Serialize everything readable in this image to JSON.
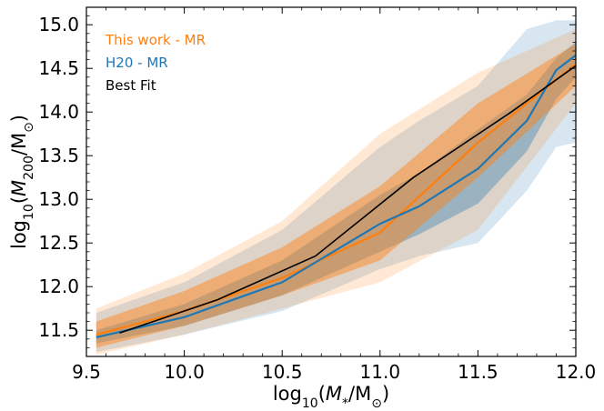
{
  "chart_data": {
    "type": "line",
    "title": "",
    "xlabel": "log10(M*/M⊙)",
    "ylabel": "log10(M200/M⊙)",
    "xlim": [
      9.5,
      12.0
    ],
    "ylim": [
      11.2,
      15.2
    ],
    "xticks": [
      9.5,
      10.0,
      10.5,
      11.0,
      11.5,
      12.0
    ],
    "xtick_labels": [
      "9.5",
      "10.0",
      "10.5",
      "11.0",
      "11.5",
      "12.0"
    ],
    "yticks": [
      11.5,
      12.0,
      12.5,
      13.0,
      13.5,
      14.0,
      14.5,
      15.0
    ],
    "ytick_labels": [
      "11.5",
      "12.0",
      "12.5",
      "13.0",
      "13.5",
      "14.0",
      "14.5",
      "15.0"
    ],
    "grid": false,
    "legend_position": "top-left",
    "series": [
      {
        "name": "This work - MR",
        "color": "#ff7f0e",
        "x": [
          9.55,
          10.0,
          10.5,
          11.0,
          11.5,
          12.0
        ],
        "median": [
          11.45,
          11.72,
          12.1,
          12.62,
          13.65,
          14.55
        ],
        "inner_band": {
          "lower": [
            11.3,
            11.55,
            11.9,
            12.3,
            13.25,
            14.3
          ],
          "upper": [
            11.6,
            11.95,
            12.45,
            13.15,
            14.1,
            14.78
          ]
        },
        "outer_band": {
          "lower": [
            11.22,
            11.45,
            11.75,
            12.05,
            12.65,
            14.1
          ],
          "upper": [
            11.75,
            12.15,
            12.75,
            13.75,
            14.45,
            14.95
          ]
        }
      },
      {
        "name": "H20 - MR",
        "color": "#1f77b4",
        "x": [
          9.55,
          10.0,
          10.5,
          11.0,
          11.2,
          11.5,
          11.75,
          11.9,
          12.0
        ],
        "median": [
          11.42,
          11.65,
          12.05,
          12.72,
          12.92,
          13.35,
          13.9,
          14.48,
          14.65
        ],
        "inner_band": {
          "lower": [
            11.35,
            11.55,
            11.9,
            12.4,
            12.6,
            12.95,
            13.55,
            14.15,
            14.4
          ],
          "upper": [
            11.5,
            11.8,
            12.3,
            13.05,
            13.3,
            13.8,
            14.2,
            14.62,
            14.8
          ]
        },
        "outer_band": {
          "lower": [
            11.25,
            11.45,
            11.72,
            12.2,
            12.35,
            12.5,
            13.1,
            13.6,
            13.65
          ],
          "upper": [
            11.7,
            12.05,
            12.65,
            13.6,
            13.9,
            14.3,
            14.95,
            15.05,
            15.05
          ]
        }
      },
      {
        "name": "Best Fit",
        "color": "#000000",
        "x": [
          9.67,
          10.17,
          10.67,
          11.17,
          11.67,
          12.0
        ],
        "y": [
          11.47,
          11.85,
          12.35,
          13.25,
          14.0,
          14.53
        ]
      }
    ]
  }
}
